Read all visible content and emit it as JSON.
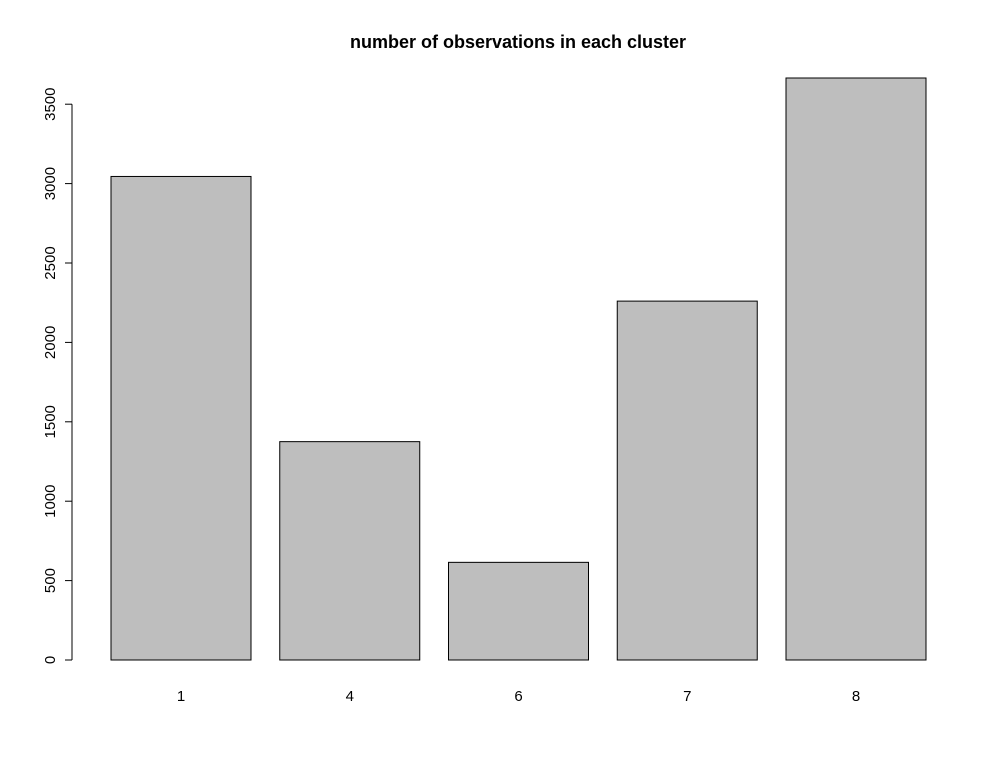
{
  "chart_data": {
    "type": "bar",
    "title": "number of observations in each cluster",
    "xlabel": "",
    "ylabel": "",
    "categories": [
      "1",
      "4",
      "6",
      "7",
      "8"
    ],
    "values": [
      3045,
      1375,
      615,
      2260,
      3665
    ],
    "ylim": [
      0,
      3665
    ],
    "yticks": [
      0,
      500,
      1000,
      1500,
      2000,
      2500,
      3000,
      3500
    ],
    "bar_fill": "#bebebe",
    "bar_stroke": "#000000",
    "grid": false,
    "legend": "none"
  }
}
